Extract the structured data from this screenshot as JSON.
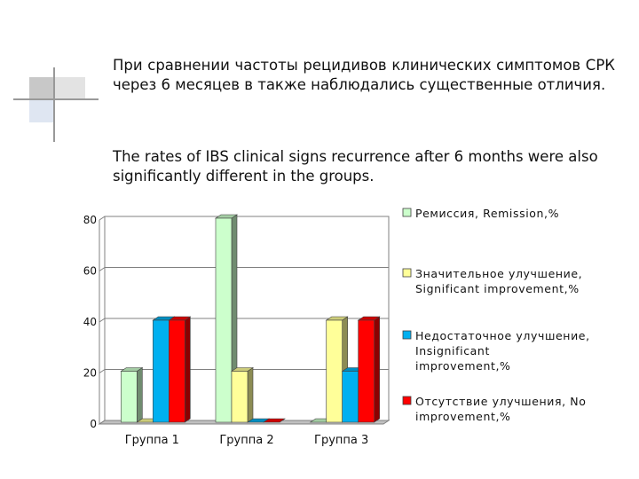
{
  "slide": {
    "paragraph_ru": "При сравнении частоты рецидивов клинических симптомов СРК через 6 месяцев в также наблюдались существенные отличия.",
    "paragraph_en": "The rates of IBS clinical signs recurrence after 6 months were also significantly different in the groups."
  },
  "chart_data": {
    "type": "bar",
    "title": "",
    "xlabel": "",
    "ylabel": "",
    "ylim": [
      0,
      80
    ],
    "yticks": [
      "0",
      "20",
      "40",
      "60",
      "80"
    ],
    "categories": [
      "Группа 1",
      "Группа 2",
      "Группа 3"
    ],
    "grid": true,
    "legend_position": "right",
    "series": [
      {
        "name": "Ремиссия, Remission,%",
        "legend_lines": [
          "Ремиссия, Remission,%"
        ],
        "color": "#ccffcc",
        "values": [
          20,
          80,
          0
        ]
      },
      {
        "name": "Значительное улучшение, Significant improvement,%",
        "legend_lines": [
          "Значительное улучшение,",
          "Significant improvement,%"
        ],
        "color": "#ffff99",
        "values": [
          0,
          20,
          40
        ]
      },
      {
        "name": "Недостаточное улучшение, Insignificant improvement,%",
        "legend_lines": [
          "Недостаточное улучшение,",
          "Insignificant",
          "improvement,%"
        ],
        "color": "#00b0f0",
        "values": [
          40,
          0,
          20
        ]
      },
      {
        "name": "Отсутствие улучшения, No improvement,%",
        "legend_lines": [
          "Отсутствие улучшения, No",
          "improvement,%"
        ],
        "color": "#ff0000",
        "values": [
          40,
          0,
          40
        ]
      }
    ]
  }
}
